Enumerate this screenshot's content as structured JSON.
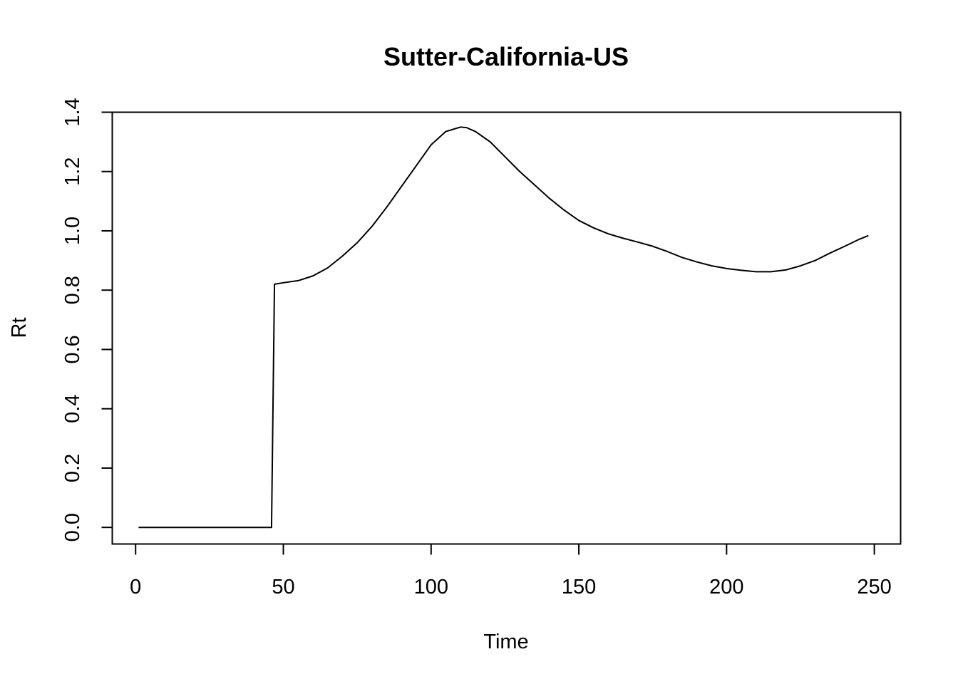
{
  "chart_data": {
    "type": "line",
    "title": "Sutter-California-US",
    "xlabel": "Time",
    "ylabel": "Rt",
    "xlim": [
      -7.9,
      258.9
    ],
    "ylim": [
      -0.056,
      1.4
    ],
    "xticks": [
      0,
      50,
      100,
      150,
      200,
      250
    ],
    "yticks": [
      0.0,
      0.2,
      0.4,
      0.6,
      0.8,
      1.0,
      1.2,
      1.4
    ],
    "xtick_labels": [
      "0",
      "50",
      "100",
      "150",
      "200",
      "250"
    ],
    "ytick_labels": [
      "0.0",
      "0.2",
      "0.4",
      "0.6",
      "0.8",
      "1.0",
      "1.2",
      "1.4"
    ],
    "grid": false,
    "legend": "none",
    "line_color": "#000000",
    "series": [
      {
        "x": [
          1,
          10,
          20,
          30,
          40,
          46,
          47,
          50,
          55,
          60,
          65,
          70,
          75,
          80,
          85,
          90,
          95,
          100,
          105,
          110,
          112,
          115,
          120,
          125,
          130,
          135,
          140,
          145,
          150,
          155,
          160,
          165,
          170,
          175,
          180,
          185,
          190,
          195,
          200,
          205,
          210,
          215,
          220,
          225,
          230,
          235,
          240,
          245,
          248
        ],
        "y": [
          0,
          0,
          0,
          0,
          0,
          0,
          0.82,
          0.825,
          0.832,
          0.848,
          0.875,
          0.915,
          0.96,
          1.015,
          1.08,
          1.15,
          1.22,
          1.29,
          1.335,
          1.35,
          1.348,
          1.335,
          1.3,
          1.25,
          1.2,
          1.155,
          1.11,
          1.07,
          1.035,
          1.01,
          0.99,
          0.975,
          0.962,
          0.948,
          0.93,
          0.91,
          0.895,
          0.882,
          0.873,
          0.867,
          0.862,
          0.862,
          0.868,
          0.882,
          0.9,
          0.925,
          0.948,
          0.972,
          0.984
        ]
      }
    ]
  }
}
